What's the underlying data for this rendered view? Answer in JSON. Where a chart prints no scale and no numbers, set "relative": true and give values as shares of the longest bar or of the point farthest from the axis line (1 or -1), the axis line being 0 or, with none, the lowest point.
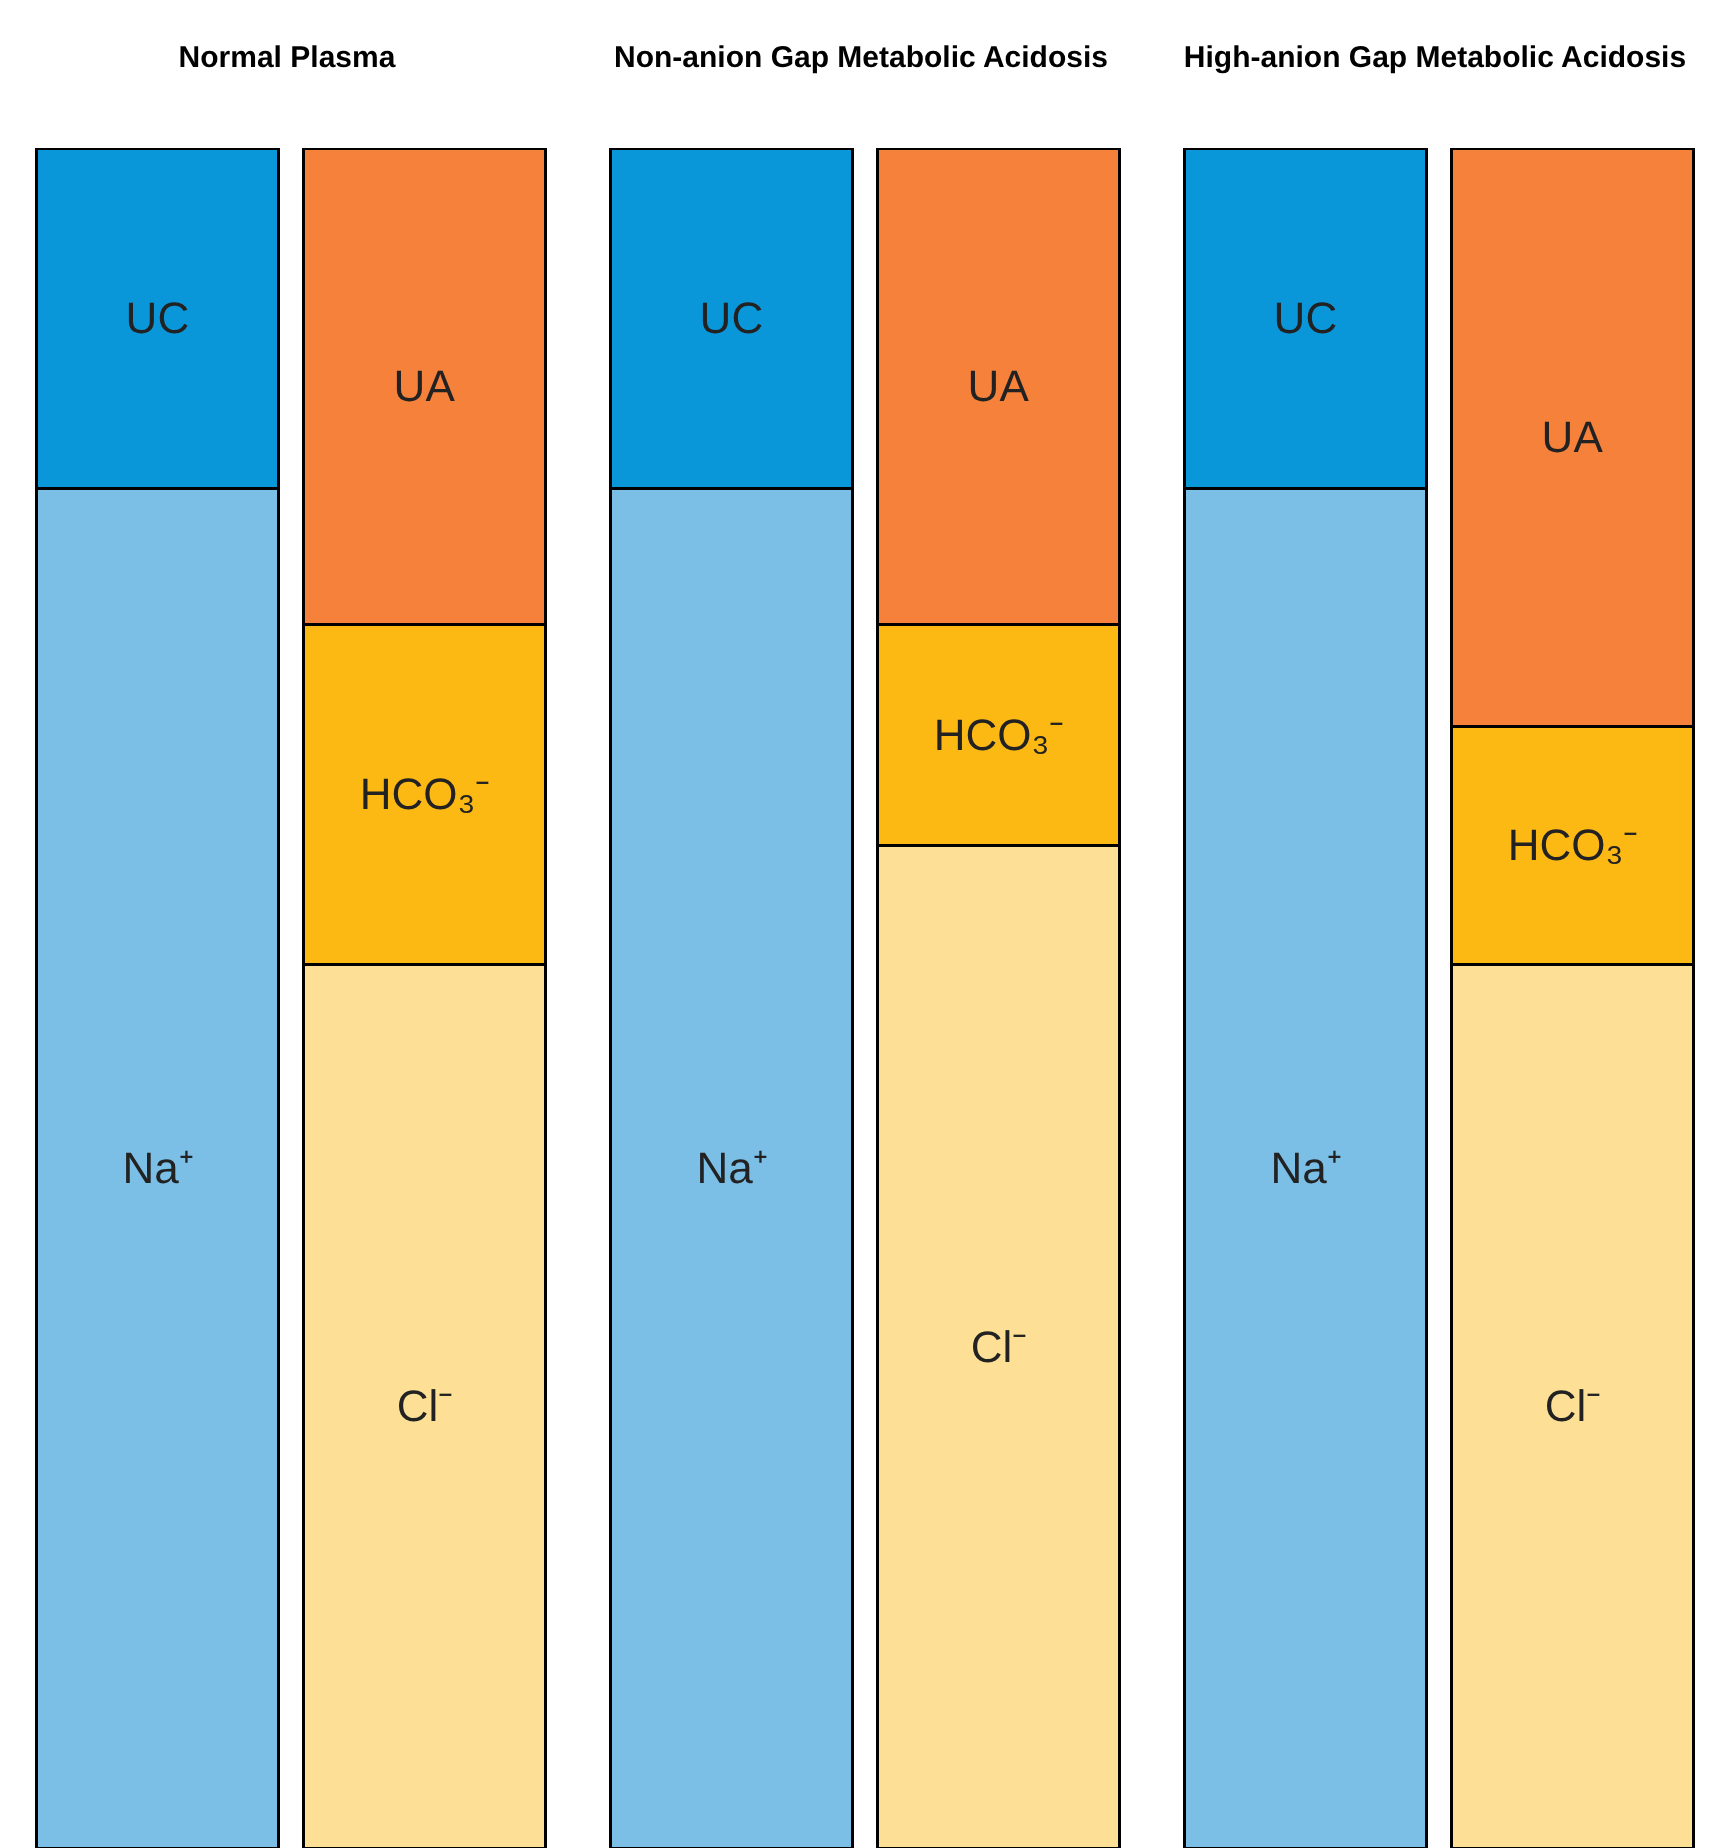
{
  "chart_data": [
    {
      "type": "bar",
      "title": "Normal Plasma",
      "stacked": true,
      "relative": true,
      "legend": false,
      "categories": [
        null,
        null
      ],
      "series": [
        {
          "name": "Na⁺",
          "color": "#7bbfe6",
          "values": [
            0.8,
            null
          ]
        },
        {
          "name": "UC",
          "color": "#0a97d9",
          "values": [
            0.2,
            null
          ]
        },
        {
          "name": "Cl⁻",
          "color": "#fde096",
          "values": [
            null,
            0.52
          ]
        },
        {
          "name": "HCO₃⁻",
          "color": "#fdb913",
          "values": [
            null,
            0.2
          ]
        },
        {
          "name": "UA",
          "color": "#f6813a",
          "values": [
            null,
            0.28
          ]
        }
      ]
    },
    {
      "type": "bar",
      "title": "Non-anion Gap Metabolic Acidosis",
      "stacked": true,
      "relative": true,
      "legend": false,
      "categories": [
        null,
        null
      ],
      "series": [
        {
          "name": "Na⁺",
          "color": "#7bbfe6",
          "values": [
            0.8,
            null
          ]
        },
        {
          "name": "UC",
          "color": "#0a97d9",
          "values": [
            0.2,
            null
          ]
        },
        {
          "name": "Cl⁻",
          "color": "#fde096",
          "values": [
            null,
            0.59
          ]
        },
        {
          "name": "HCO₃⁻",
          "color": "#fdb913",
          "values": [
            null,
            0.13
          ]
        },
        {
          "name": "UA",
          "color": "#f6813a",
          "values": [
            null,
            0.28
          ]
        }
      ]
    },
    {
      "type": "bar",
      "title": "High-anion Gap Metabolic Acidosis",
      "stacked": true,
      "relative": true,
      "legend": false,
      "categories": [
        null,
        null
      ],
      "series": [
        {
          "name": "Na⁺",
          "color": "#7bbfe6",
          "values": [
            0.8,
            null
          ]
        },
        {
          "name": "UC",
          "color": "#0a97d9",
          "values": [
            0.2,
            null
          ]
        },
        {
          "name": "Cl⁻",
          "color": "#fde096",
          "values": [
            null,
            0.52
          ]
        },
        {
          "name": "HCO₃⁻",
          "color": "#fdb913",
          "values": [
            null,
            0.14
          ]
        },
        {
          "name": "UA",
          "color": "#f6813a",
          "values": [
            null,
            0.34
          ]
        }
      ]
    }
  ]
}
